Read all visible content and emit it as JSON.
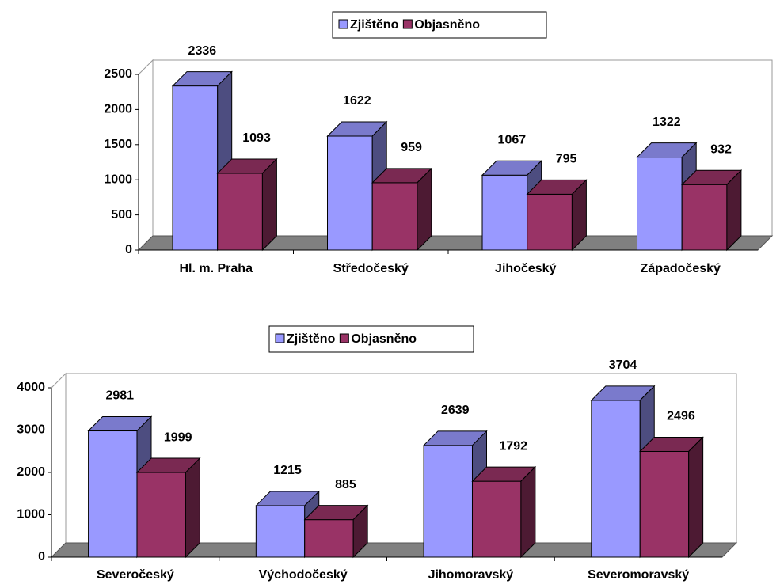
{
  "chart_data": [
    {
      "type": "bar3d",
      "categories": [
        "Hl. m. Praha",
        "Středočeský",
        "Jihočeský",
        "Západočeský"
      ],
      "series": [
        {
          "name": "Zjištěno",
          "color": "#9999ff",
          "values": [
            2336,
            1622,
            1067,
            1322
          ]
        },
        {
          "name": "Objasněno",
          "color": "#993366",
          "values": [
            1093,
            959,
            795,
            932
          ]
        }
      ],
      "ylim": [
        0,
        2500
      ],
      "yticks": [
        0,
        500,
        1000,
        1500,
        2000,
        2500
      ],
      "legend": "top"
    },
    {
      "type": "bar3d",
      "categories": [
        "Severočeský",
        "Východočeský",
        "Jihomoravský",
        "Severomoravský"
      ],
      "series": [
        {
          "name": "Zjištěno",
          "color": "#9999ff",
          "values": [
            2981,
            1215,
            2639,
            3704
          ]
        },
        {
          "name": "Objasněno",
          "color": "#993366",
          "values": [
            1999,
            885,
            1792,
            2496
          ]
        }
      ],
      "ylim": [
        0,
        4000
      ],
      "yticks": [
        0,
        1000,
        2000,
        3000,
        4000
      ],
      "legend": "top"
    }
  ]
}
